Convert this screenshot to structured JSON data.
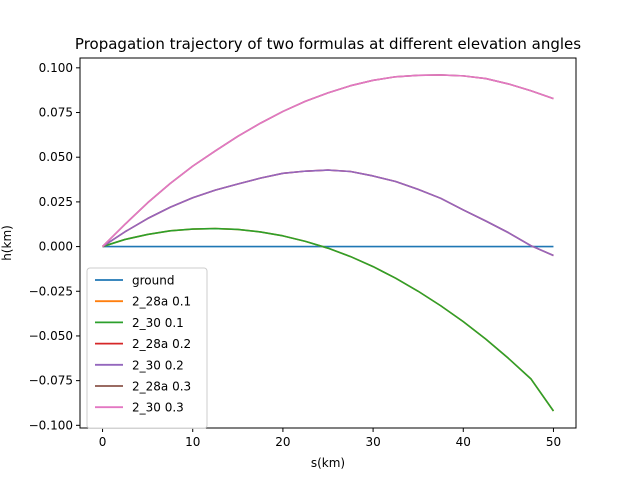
{
  "chart_data": {
    "type": "line",
    "title": "Propagation trajectory of two formulas at different elevation angles",
    "xlabel": "s(km)",
    "ylabel": "h(km)",
    "xlim": [
      -2.5,
      52.5
    ],
    "ylim": [
      -0.1015,
      0.1055
    ],
    "xticks": [
      0,
      10,
      20,
      30,
      40,
      50
    ],
    "yticks": [
      -0.1,
      -0.075,
      -0.05,
      -0.025,
      0.0,
      0.025,
      0.05,
      0.075,
      0.1
    ],
    "ytick_labels": [
      "−0.100",
      "−0.075",
      "−0.050",
      "−0.025",
      "0.000",
      "0.025",
      "0.050",
      "0.075",
      "0.100"
    ],
    "grid": false,
    "legend": "lower-left",
    "x": [
      0,
      2.5,
      5,
      7.5,
      10,
      12.5,
      15,
      17.5,
      20,
      22.5,
      25,
      27.5,
      30,
      32.5,
      35,
      37.5,
      40,
      42.5,
      45,
      47.5,
      50
    ],
    "series": [
      {
        "name": "ground",
        "color": "#1f77b4",
        "values": [
          0,
          0,
          0,
          0,
          0,
          0,
          0,
          0,
          0,
          0,
          0,
          0,
          0,
          0,
          0,
          0,
          0,
          0,
          0,
          0,
          0
        ]
      },
      {
        "name": "2_28a 0.1",
        "color": "#ff7f0e",
        "values": [
          0,
          0.004,
          0.0068,
          0.0088,
          0.0098,
          0.0101,
          0.0096,
          0.0082,
          0.006,
          0.0029,
          -0.0009,
          -0.0056,
          -0.0112,
          -0.0177,
          -0.025,
          -0.0331,
          -0.042,
          -0.0518,
          -0.0625,
          -0.074,
          -0.092
        ]
      },
      {
        "name": "2_30 0.1",
        "color": "#2ca02c",
        "values": [
          0,
          0.004,
          0.0068,
          0.0088,
          0.0098,
          0.0101,
          0.0096,
          0.0082,
          0.006,
          0.0029,
          -0.0009,
          -0.0056,
          -0.0112,
          -0.0177,
          -0.025,
          -0.0331,
          -0.042,
          -0.0518,
          -0.0625,
          -0.074,
          -0.092
        ]
      },
      {
        "name": "2_28a 0.2",
        "color": "#d62728",
        "values": [
          0,
          0.0083,
          0.0157,
          0.022,
          0.0273,
          0.0316,
          0.035,
          0.0383,
          0.041,
          0.0422,
          0.0428,
          0.042,
          0.0395,
          0.0364,
          0.032,
          0.027,
          0.0205,
          0.0143,
          0.0078,
          0.0005,
          -0.005
        ]
      },
      {
        "name": "2_30 0.2",
        "color": "#9467bd",
        "values": [
          0,
          0.0083,
          0.0157,
          0.022,
          0.0273,
          0.0316,
          0.035,
          0.0383,
          0.041,
          0.0422,
          0.0428,
          0.042,
          0.0395,
          0.0364,
          0.032,
          0.027,
          0.0205,
          0.0143,
          0.0078,
          0.0005,
          -0.005
        ]
      },
      {
        "name": "2_28a 0.3",
        "color": "#8c564b",
        "values": [
          0,
          0.0125,
          0.0245,
          0.0353,
          0.045,
          0.0535,
          0.0617,
          0.069,
          0.0756,
          0.0813,
          0.086,
          0.09,
          0.093,
          0.095,
          0.0958,
          0.096,
          0.0955,
          0.094,
          0.091,
          0.0872,
          0.0828
        ]
      },
      {
        "name": "2_30 0.3",
        "color": "#e377c2",
        "values": [
          0,
          0.0125,
          0.0245,
          0.0353,
          0.045,
          0.0535,
          0.0617,
          0.069,
          0.0756,
          0.0813,
          0.086,
          0.09,
          0.093,
          0.095,
          0.0958,
          0.096,
          0.0955,
          0.094,
          0.091,
          0.0872,
          0.0828
        ]
      }
    ]
  }
}
